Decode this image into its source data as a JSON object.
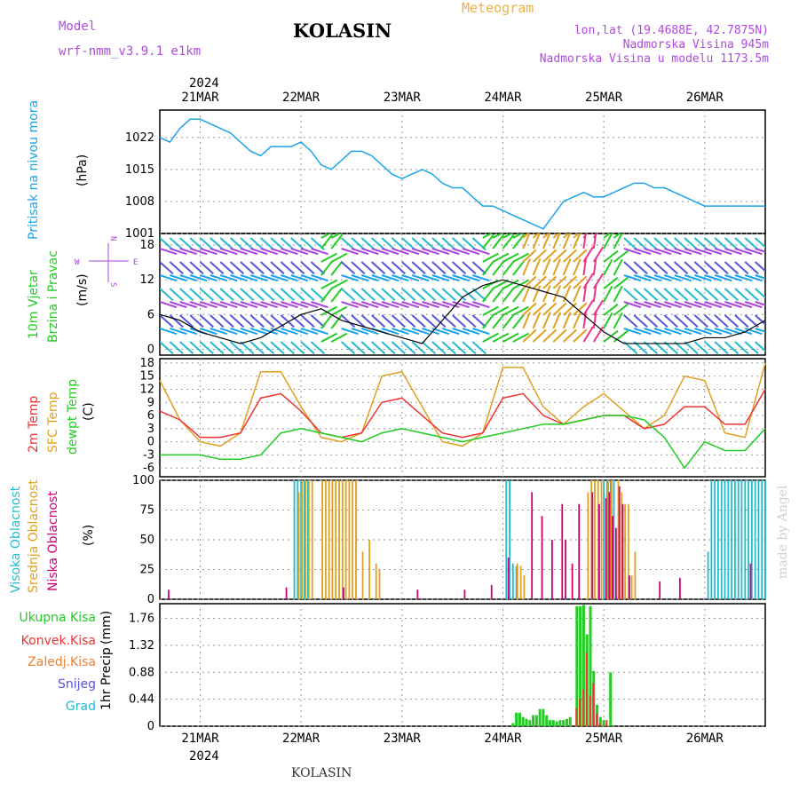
{
  "header": {
    "model_label": "Model",
    "model_name": "wrf-nmm_v3.9.1 e1km",
    "title": "KOLASIN",
    "meteogram": "Meteogram",
    "lonlat": "lon,lat (19.4688E, 42.7875N)",
    "altitude": "Nadmorska Visina 945m",
    "model_altitude": "Nadmorska Visina u modelu 1173.5m",
    "year": "2024"
  },
  "footer": {
    "station": "KOLASIN",
    "credit": "made by Angel"
  },
  "colors": {
    "pressure": "#1aa3e8",
    "temp2m": "#ee3333",
    "sfc_temp": "#e0a020",
    "dewpt": "#22cc22",
    "high_cloud": "#22bbcc",
    "mid_cloud": "#e0a020",
    "low_cloud": "#cc0077",
    "precip_total": "#22cc22",
    "precip_conv": "#ee3333",
    "snow": "#5555dd",
    "purple_label": "#aa44dd"
  },
  "chart_data": [
    {
      "type": "line",
      "panel": "pressure",
      "ylabel": "Pritisak na nivou mora",
      "units": "(hPa)",
      "yticks": [
        1001,
        1008,
        1015,
        1022
      ],
      "ylim": [
        1001,
        1028
      ],
      "date_labels": [
        "21MAR",
        "22MAR",
        "23MAR",
        "24MAR",
        "25MAR",
        "26MAR"
      ],
      "year_label": "2024",
      "series": [
        {
          "x": [
            0,
            3,
            6,
            9,
            12,
            15,
            18,
            21,
            24,
            27,
            30,
            33,
            36,
            39,
            42,
            45,
            48,
            51,
            54,
            57,
            60,
            63,
            66,
            69,
            72,
            75,
            78,
            81,
            84,
            87,
            90,
            93,
            96,
            99,
            102,
            105,
            108,
            111,
            114,
            117,
            120,
            123,
            126,
            129,
            132,
            135,
            138,
            141,
            144,
            147,
            150,
            153,
            156,
            159,
            162,
            165,
            168,
            171,
            174,
            177,
            180
          ],
          "values": [
            1022,
            1021,
            1024,
            1026,
            1026,
            1025,
            1024,
            1023,
            1021,
            1019,
            1018,
            1020,
            1020,
            1020,
            1021,
            1019,
            1016,
            1015,
            1017,
            1019,
            1019,
            1018,
            1016,
            1014,
            1013,
            1014,
            1015,
            1014,
            1012,
            1011,
            1011,
            1009,
            1007,
            1007,
            1006,
            1005,
            1004,
            1003,
            1002,
            1005,
            1008,
            1009,
            1010,
            1009,
            1009,
            1010,
            1011,
            1012,
            1012,
            1011,
            1011,
            1010,
            1009,
            1008,
            1007,
            1007,
            1007,
            1007,
            1007,
            1007,
            1007
          ]
        }
      ]
    },
    {
      "type": "line",
      "panel": "wind",
      "ylabel": "10m Vjetar",
      "ylabel2": "Brzina i Pravac",
      "units": "(m/s)",
      "compass": {
        "n": "N",
        "w": "W",
        "e": "E",
        "s": "S"
      },
      "yticks": [
        0,
        6,
        12,
        18
      ],
      "ylim": [
        -1,
        20
      ],
      "series": [
        {
          "name": "speed",
          "x": [
            0,
            6,
            12,
            18,
            24,
            30,
            36,
            42,
            48,
            54,
            60,
            66,
            72,
            78,
            84,
            90,
            96,
            102,
            108,
            114,
            120,
            126,
            132,
            138,
            144,
            150,
            156,
            162,
            168,
            174,
            180
          ],
          "values": [
            6,
            5,
            3,
            2,
            1,
            2,
            4,
            6,
            7,
            5,
            4,
            3,
            2,
            1,
            5,
            9,
            11,
            12,
            11,
            10,
            9,
            6,
            3,
            1,
            1,
            1,
            1,
            2,
            2,
            3,
            5
          ]
        }
      ]
    },
    {
      "type": "line",
      "panel": "temperature",
      "ylabel": "2m Temp",
      "ylabel2": "SFC Temp",
      "ylabel3": "dewpt Temp",
      "units": "(C)",
      "yticks": [
        -6,
        -3,
        0,
        3,
        6,
        9,
        12,
        15,
        18
      ],
      "ylim": [
        -8,
        19
      ],
      "series": [
        {
          "name": "2m Temp",
          "x": [
            0,
            6,
            12,
            18,
            24,
            30,
            36,
            42,
            48,
            54,
            60,
            66,
            72,
            78,
            84,
            90,
            96,
            102,
            108,
            114,
            120,
            126,
            132,
            138,
            144,
            150,
            156,
            162,
            168,
            174,
            180
          ],
          "values": [
            7,
            5,
            1,
            1,
            2,
            10,
            11,
            7,
            2,
            1,
            2,
            9,
            10,
            6,
            2,
            1,
            2,
            10,
            11,
            6,
            4,
            5,
            6,
            6,
            3,
            4,
            8,
            8,
            4,
            4,
            12
          ]
        },
        {
          "name": "SFC Temp",
          "x": [
            0,
            6,
            12,
            18,
            24,
            30,
            36,
            42,
            48,
            54,
            60,
            66,
            72,
            78,
            84,
            90,
            96,
            102,
            108,
            114,
            120,
            126,
            132,
            138,
            144,
            150,
            156,
            162,
            168,
            174,
            180
          ],
          "values": [
            14,
            5,
            0,
            -1,
            2,
            16,
            16,
            8,
            1,
            0,
            2,
            15,
            16,
            8,
            0,
            -1,
            2,
            17,
            17,
            8,
            4,
            8,
            11,
            7,
            3,
            6,
            15,
            14,
            2,
            1,
            18
          ]
        },
        {
          "name": "dewpt Temp",
          "x": [
            0,
            6,
            12,
            18,
            24,
            30,
            36,
            42,
            48,
            54,
            60,
            66,
            72,
            78,
            84,
            90,
            96,
            102,
            108,
            114,
            120,
            126,
            132,
            138,
            144,
            150,
            156,
            162,
            168,
            174,
            180
          ],
          "values": [
            -3,
            -3,
            -3,
            -4,
            -4,
            -3,
            2,
            3,
            2,
            1,
            0,
            2,
            3,
            2,
            1,
            0,
            1,
            2,
            3,
            4,
            4,
            5,
            6,
            6,
            5,
            1,
            -6,
            0,
            -2,
            -2,
            3
          ]
        }
      ]
    },
    {
      "type": "bar",
      "panel": "clouds",
      "ylabel": "Visoka Oblacnost",
      "ylabel2": "Srednja Oblacnost",
      "ylabel3": "Niska Oblacnost",
      "units": "(%)",
      "yticks": [
        0,
        25,
        50,
        75,
        100
      ],
      "ylim": [
        0,
        100
      ],
      "series": [
        {
          "name": "Visoka Oblacnost",
          "x": [
            40,
            41,
            42,
            43,
            44,
            103,
            104,
            105,
            106,
            132,
            133,
            134,
            135,
            163,
            164,
            165,
            166,
            167,
            168,
            169,
            170,
            171,
            172,
            173,
            174,
            175,
            176,
            177,
            178,
            179,
            180
          ],
          "values": [
            100,
            100,
            100,
            100,
            100,
            100,
            100,
            30,
            28,
            100,
            100,
            100,
            100,
            40,
            100,
            100,
            100,
            100,
            100,
            100,
            100,
            100,
            100,
            100,
            100,
            100,
            100,
            100,
            100,
            100,
            100
          ]
        },
        {
          "name": "Srednja Oblacnost",
          "x": [
            41,
            42,
            43,
            44,
            45,
            48,
            49,
            50,
            51,
            52,
            53,
            54,
            55,
            56,
            57,
            58,
            60,
            62,
            64,
            65,
            106,
            107,
            108,
            127,
            128,
            129,
            130,
            131,
            133,
            134,
            136,
            137,
            138,
            139,
            140,
            141
          ],
          "values": [
            90,
            100,
            100,
            100,
            100,
            100,
            100,
            100,
            100,
            100,
            100,
            100,
            100,
            100,
            100,
            100,
            40,
            50,
            30,
            25,
            30,
            28,
            20,
            90,
            100,
            100,
            100,
            100,
            100,
            100,
            100,
            90,
            80,
            80,
            20,
            40
          ]
        },
        {
          "name": "Niska Oblacnost",
          "x": [
            2,
            37,
            54,
            76,
            90,
            98,
            103,
            110,
            113,
            116,
            119,
            120,
            122,
            124,
            128,
            130,
            132,
            133,
            134,
            135,
            136,
            137,
            139,
            148,
            154,
            175
          ],
          "values": [
            8,
            10,
            10,
            8,
            8,
            12,
            35,
            90,
            70,
            50,
            80,
            50,
            30,
            80,
            90,
            80,
            85,
            90,
            70,
            60,
            95,
            80,
            20,
            15,
            18,
            30
          ]
        }
      ]
    },
    {
      "type": "bar",
      "panel": "precip",
      "ylabel": "1hr Precip",
      "units": "(mm)",
      "yticks": [
        0,
        0.44,
        0.88,
        1.32,
        1.76
      ],
      "ylim": [
        0,
        2.0
      ],
      "legend": [
        "Ukupna Kisa",
        "Konvek.Kisa",
        "Zaledj.Kisa",
        "Snijeg",
        "Grad"
      ],
      "series": [
        {
          "name": "Ukupna Kisa",
          "x": [
            105,
            106,
            107,
            108,
            109,
            110,
            111,
            112,
            113,
            114,
            115,
            116,
            117,
            118,
            119,
            120,
            121,
            122,
            123,
            124,
            125,
            126,
            127,
            128,
            129,
            130,
            131,
            132,
            133,
            134,
            135,
            136,
            137,
            138,
            139,
            140
          ],
          "values": [
            0.05,
            0.22,
            0.22,
            0.15,
            0.12,
            0.1,
            0.18,
            0.18,
            0.28,
            0.28,
            0.18,
            0.1,
            0.1,
            0.08,
            0.1,
            0.1,
            0.12,
            0.15,
            0.0,
            1.96,
            1.96,
            1.98,
            1.5,
            1.96,
            0.9,
            0.35,
            0.15,
            0.1,
            0.0,
            0.88,
            0.0,
            0.0,
            0.0,
            0.0,
            0.0,
            0.0
          ]
        },
        {
          "name": "Konvek.Kisa",
          "x": [
            124,
            125,
            126,
            127,
            128,
            129,
            130,
            131,
            133
          ],
          "values": [
            0.3,
            0.45,
            0.6,
            1.2,
            0.5,
            0.7,
            0.2,
            0.05,
            0.1
          ]
        }
      ]
    }
  ]
}
